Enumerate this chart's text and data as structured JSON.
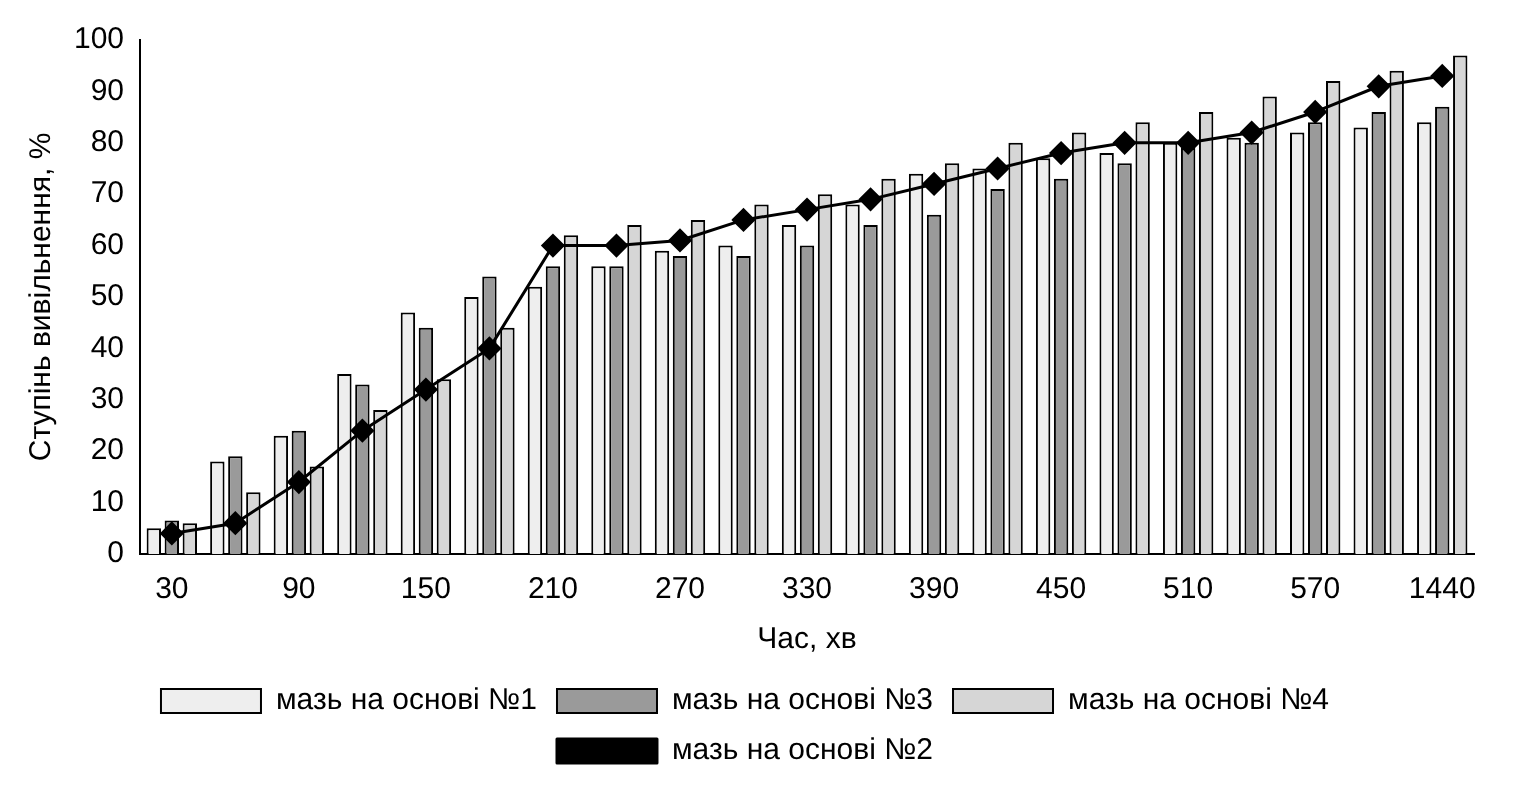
{
  "chart_data": {
    "type": "bar",
    "xlabel": "Час, хв",
    "ylabel": "Ступінь вивільнення, %",
    "categories": [
      "30",
      null,
      "90",
      null,
      "150",
      null,
      "210",
      null,
      "270",
      null,
      "330",
      null,
      "390",
      null,
      "450",
      null,
      "510",
      null,
      "570",
      null,
      "1440"
    ],
    "series": [
      {
        "name": "мазь на основі №1",
        "color": "#eeeeee",
        "values": [
          5,
          18,
          23,
          35,
          47,
          50,
          52,
          56,
          59,
          60,
          64,
          68,
          74,
          75,
          77,
          78,
          80,
          81,
          82,
          83,
          84
        ]
      },
      {
        "name": "мазь на основі №3",
        "color": "#9a9a9a",
        "values": [
          6.5,
          19,
          24,
          33,
          44,
          54,
          56,
          56,
          58,
          58,
          60,
          64,
          66,
          71,
          73,
          76,
          79,
          80,
          84,
          86,
          87
        ]
      },
      {
        "name": "мазь на основі №4",
        "color": "#d6d6d6",
        "values": [
          6,
          12,
          17,
          28,
          34,
          44,
          62,
          64,
          65,
          68,
          70,
          73,
          76,
          80,
          82,
          84,
          86,
          89,
          92,
          94,
          97
        ]
      },
      {
        "name": "мазь на основі №2",
        "type": "line",
        "color": "#000000",
        "marker": "diamond",
        "values": [
          4,
          6,
          14,
          24,
          32,
          40,
          60,
          60,
          61,
          65,
          67,
          69,
          72,
          75,
          78,
          80,
          80,
          82,
          86,
          91,
          93
        ]
      }
    ],
    "ylim": [
      0,
      100
    ],
    "yticks": [
      0,
      10,
      20,
      30,
      40,
      50,
      60,
      70,
      80,
      90,
      100
    ],
    "grid": false,
    "legend": "bottom"
  }
}
